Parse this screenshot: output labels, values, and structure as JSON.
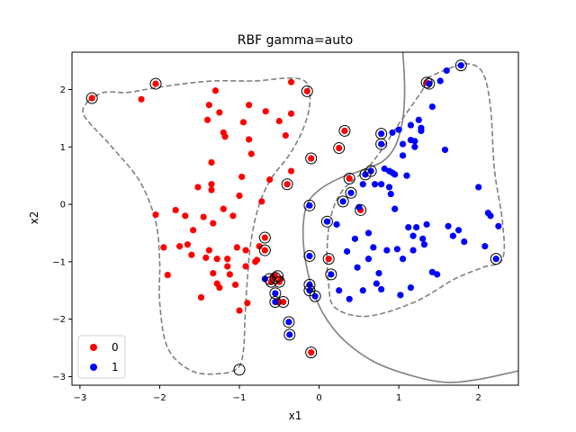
{
  "chart_data": {
    "type": "scatter",
    "title": "RBF gamma=auto",
    "xlabel": "x1",
    "ylabel": "x2",
    "xlim": [
      -3.1,
      2.5
    ],
    "ylim": [
      -3.15,
      2.65
    ],
    "xticks": [
      -3,
      -2,
      -1,
      0,
      1,
      2
    ],
    "yticks": [
      -3,
      -2,
      -1,
      0,
      1,
      2
    ],
    "xtick_labels": [
      "−3",
      "−2",
      "−1",
      "0",
      "1",
      "2"
    ],
    "ytick_labels": [
      "−3",
      "−2",
      "−1",
      "0",
      "1",
      "2"
    ],
    "grid": false,
    "legend_placement": "lower-left",
    "colors": {
      "class_0": "#ff0000",
      "class_1": "#0000ff",
      "boundary": "#808080",
      "support_vector_ring": "#000000"
    },
    "series": [
      {
        "name": "0",
        "color": "#ff0000",
        "points": [
          [
            -2.85,
            1.85
          ],
          [
            -2.23,
            1.83
          ],
          [
            -2.05,
            2.1
          ],
          [
            -2.05,
            -0.18
          ],
          [
            -1.95,
            -0.75
          ],
          [
            -1.9,
            -1.23
          ],
          [
            -1.8,
            -0.1
          ],
          [
            -1.75,
            -0.73
          ],
          [
            -1.68,
            -0.2
          ],
          [
            -1.65,
            -0.7
          ],
          [
            -1.6,
            -0.88
          ],
          [
            -1.58,
            -0.45
          ],
          [
            -1.52,
            0.3
          ],
          [
            -1.48,
            -1.62
          ],
          [
            -1.45,
            -0.22
          ],
          [
            -1.42,
            -0.93
          ],
          [
            -1.4,
            1.47
          ],
          [
            -1.38,
            1.73
          ],
          [
            -1.38,
            -0.8
          ],
          [
            -1.35,
            0.35
          ],
          [
            -1.35,
            0.25
          ],
          [
            -1.35,
            0.73
          ],
          [
            -1.33,
            -1.2
          ],
          [
            -1.33,
            -0.33
          ],
          [
            -1.3,
            1.98
          ],
          [
            -1.28,
            -0.95
          ],
          [
            -1.28,
            -1.38
          ],
          [
            -1.25,
            1.6
          ],
          [
            -1.25,
            -1.45
          ],
          [
            -1.2,
            -0.08
          ],
          [
            -1.2,
            1.25
          ],
          [
            -1.18,
            1.18
          ],
          [
            -1.15,
            -1.08
          ],
          [
            -1.15,
            -0.95
          ],
          [
            -1.12,
            -1.22
          ],
          [
            -1.08,
            -0.2
          ],
          [
            -1.05,
            -1.4
          ],
          [
            -1.03,
            -0.75
          ],
          [
            -1.0,
            0.15
          ],
          [
            -1.0,
            -1.85
          ],
          [
            -0.97,
            0.48
          ],
          [
            -0.95,
            1.43
          ],
          [
            -0.92,
            -0.8
          ],
          [
            -0.92,
            -1.08
          ],
          [
            -0.9,
            -1.72
          ],
          [
            -0.88,
            1.73
          ],
          [
            -0.88,
            1.13
          ],
          [
            -0.85,
            0.88
          ],
          [
            -0.8,
            -1.0
          ],
          [
            -0.78,
            -0.97
          ],
          [
            -0.75,
            -0.73
          ],
          [
            -0.72,
            0.05
          ],
          [
            -0.68,
            -0.58
          ],
          [
            -0.68,
            -0.8
          ],
          [
            -0.67,
            1.62
          ],
          [
            -0.62,
            0.43
          ],
          [
            -0.6,
            -1.35
          ],
          [
            -0.58,
            -1.28
          ],
          [
            -0.55,
            -1.25
          ],
          [
            -0.52,
            -1.7
          ],
          [
            -0.5,
            -1.35
          ],
          [
            -0.5,
            1.45
          ],
          [
            -0.48,
            -1.3
          ],
          [
            -0.45,
            -1.7
          ],
          [
            -0.42,
            1.2
          ],
          [
            -0.4,
            0.35
          ],
          [
            -0.35,
            0.58
          ],
          [
            -0.35,
            1.58
          ],
          [
            -0.35,
            2.13
          ],
          [
            -0.15,
            1.97
          ],
          [
            -0.1,
            0.8
          ],
          [
            -0.1,
            -2.58
          ],
          [
            0.12,
            -0.95
          ],
          [
            0.25,
            0.98
          ],
          [
            0.32,
            1.28
          ],
          [
            0.38,
            0.45
          ],
          [
            0.52,
            -0.1
          ],
          [
            1.35,
            2.12
          ]
        ]
      },
      {
        "name": "1",
        "color": "#0000ff",
        "points": [
          [
            -0.68,
            -1.3
          ],
          [
            -0.55,
            -1.55
          ],
          [
            -0.55,
            -1.7
          ],
          [
            -0.38,
            -2.05
          ],
          [
            -0.37,
            -2.27
          ],
          [
            -0.12,
            -0.02
          ],
          [
            -0.12,
            -0.9
          ],
          [
            -0.12,
            -1.4
          ],
          [
            -0.12,
            -1.5
          ],
          [
            -0.05,
            -1.6
          ],
          [
            0.1,
            -0.3
          ],
          [
            0.15,
            -1.22
          ],
          [
            0.22,
            -0.35
          ],
          [
            0.25,
            -1.5
          ],
          [
            0.3,
            0.05
          ],
          [
            0.35,
            -0.82
          ],
          [
            0.38,
            -1.65
          ],
          [
            0.4,
            0.2
          ],
          [
            0.45,
            -0.6
          ],
          [
            0.48,
            -1.1
          ],
          [
            0.5,
            -0.05
          ],
          [
            0.55,
            0.35
          ],
          [
            0.55,
            -1.5
          ],
          [
            0.58,
            0.52
          ],
          [
            0.62,
            -0.5
          ],
          [
            0.62,
            -0.95
          ],
          [
            0.65,
            0.58
          ],
          [
            0.68,
            -0.75
          ],
          [
            0.7,
            0.35
          ],
          [
            0.72,
            -1.38
          ],
          [
            0.75,
            -1.2
          ],
          [
            0.78,
            1.23
          ],
          [
            0.78,
            1.05
          ],
          [
            0.78,
            0.35
          ],
          [
            0.78,
            -1.48
          ],
          [
            0.82,
            0.62
          ],
          [
            0.85,
            -0.8
          ],
          [
            0.88,
            0.58
          ],
          [
            0.88,
            0.3
          ],
          [
            0.9,
            0.18
          ],
          [
            0.92,
            0.55
          ],
          [
            0.92,
            1.25
          ],
          [
            0.95,
            0.52
          ],
          [
            0.95,
            -0.08
          ],
          [
            0.98,
            -0.78
          ],
          [
            1.0,
            1.3
          ],
          [
            1.02,
            -1.58
          ],
          [
            1.05,
            1.05
          ],
          [
            1.05,
            0.85
          ],
          [
            1.05,
            -0.95
          ],
          [
            1.1,
            0.5
          ],
          [
            1.12,
            -0.4
          ],
          [
            1.15,
            1.38
          ],
          [
            1.15,
            1.12
          ],
          [
            1.15,
            -1.45
          ],
          [
            1.18,
            -0.55
          ],
          [
            1.18,
            -0.8
          ],
          [
            1.2,
            1.0
          ],
          [
            1.2,
            1.1
          ],
          [
            1.22,
            -0.4
          ],
          [
            1.25,
            1.47
          ],
          [
            1.28,
            1.33
          ],
          [
            1.28,
            1.28
          ],
          [
            1.3,
            -0.6
          ],
          [
            1.32,
            -0.7
          ],
          [
            1.35,
            -0.35
          ],
          [
            1.38,
            2.1
          ],
          [
            1.42,
            1.7
          ],
          [
            1.42,
            -1.18
          ],
          [
            1.48,
            -1.22
          ],
          [
            1.52,
            2.15
          ],
          [
            1.58,
            0.95
          ],
          [
            1.6,
            2.33
          ],
          [
            1.62,
            -0.38
          ],
          [
            1.68,
            -0.55
          ],
          [
            1.75,
            -0.45
          ],
          [
            1.78,
            2.42
          ],
          [
            1.82,
            -0.65
          ],
          [
            2.0,
            0.3
          ],
          [
            2.08,
            -0.73
          ],
          [
            2.12,
            -0.15
          ],
          [
            2.15,
            -0.2
          ],
          [
            2.22,
            -0.95
          ],
          [
            2.25,
            -0.38
          ]
        ]
      }
    ],
    "support_vectors": [
      [
        -2.85,
        1.85
      ],
      [
        -2.05,
        2.1
      ],
      [
        -1.0,
        -2.88
      ],
      [
        -0.68,
        -0.58
      ],
      [
        -0.68,
        -0.8
      ],
      [
        -0.6,
        -1.35
      ],
      [
        -0.62,
        -1.3
      ],
      [
        -0.55,
        -1.28
      ],
      [
        -0.52,
        -1.25
      ],
      [
        -0.55,
        -1.55
      ],
      [
        -0.55,
        -1.7
      ],
      [
        -0.5,
        -1.35
      ],
      [
        -0.45,
        -1.7
      ],
      [
        -0.4,
        0.35
      ],
      [
        -0.38,
        -2.05
      ],
      [
        -0.37,
        -2.27
      ],
      [
        -0.15,
        1.97
      ],
      [
        -0.12,
        -0.02
      ],
      [
        -0.1,
        0.8
      ],
      [
        -0.12,
        -0.9
      ],
      [
        -0.12,
        -1.4
      ],
      [
        -0.12,
        -1.5
      ],
      [
        -0.05,
        -1.6
      ],
      [
        -0.1,
        -2.58
      ],
      [
        0.1,
        -0.3
      ],
      [
        0.12,
        -0.95
      ],
      [
        0.15,
        -1.22
      ],
      [
        0.25,
        0.98
      ],
      [
        0.3,
        0.05
      ],
      [
        0.32,
        1.28
      ],
      [
        0.38,
        0.45
      ],
      [
        0.4,
        0.2
      ],
      [
        0.52,
        -0.1
      ],
      [
        0.58,
        0.52
      ],
      [
        0.65,
        0.58
      ],
      [
        0.78,
        1.23
      ],
      [
        0.78,
        1.05
      ],
      [
        1.35,
        2.12
      ],
      [
        1.38,
        2.1
      ],
      [
        1.78,
        2.42
      ],
      [
        2.22,
        -0.95
      ]
    ],
    "decision_boundary": [
      [
        1.05,
        2.65
      ],
      [
        1.07,
        2.2
      ],
      [
        1.07,
        1.8
      ],
      [
        1.04,
        1.4
      ],
      [
        0.95,
        1.0
      ],
      [
        0.8,
        0.75
      ],
      [
        0.55,
        0.6
      ],
      [
        0.25,
        0.45
      ],
      [
        0.0,
        0.25
      ],
      [
        -0.15,
        0.0
      ],
      [
        -0.2,
        -0.4
      ],
      [
        -0.18,
        -0.9
      ],
      [
        -0.1,
        -1.4
      ],
      [
        0.05,
        -1.9
      ],
      [
        0.3,
        -2.35
      ],
      [
        0.7,
        -2.75
      ],
      [
        1.2,
        -3.0
      ],
      [
        1.6,
        -3.1
      ],
      [
        2.0,
        -3.05
      ],
      [
        2.5,
        -2.9
      ]
    ],
    "margin_class_0": [
      [
        -2.9,
        1.8
      ],
      [
        -2.7,
        1.95
      ],
      [
        -2.4,
        1.95
      ],
      [
        -2.1,
        2.02
      ],
      [
        -1.7,
        2.1
      ],
      [
        -1.3,
        2.15
      ],
      [
        -0.8,
        2.15
      ],
      [
        -0.35,
        2.2
      ],
      [
        -0.15,
        2.1
      ],
      [
        -0.12,
        1.7
      ],
      [
        -0.22,
        1.25
      ],
      [
        -0.38,
        0.85
      ],
      [
        -0.6,
        0.45
      ],
      [
        -0.75,
        0.0
      ],
      [
        -0.85,
        -0.6
      ],
      [
        -0.9,
        -1.3
      ],
      [
        -0.93,
        -2.0
      ],
      [
        -0.95,
        -2.55
      ],
      [
        -1.02,
        -2.85
      ],
      [
        -1.25,
        -2.95
      ],
      [
        -1.6,
        -2.9
      ],
      [
        -1.9,
        -2.5
      ],
      [
        -2.0,
        -1.7
      ],
      [
        -2.0,
        -1.0
      ],
      [
        -2.05,
        -0.3
      ],
      [
        -2.25,
        0.4
      ],
      [
        -2.6,
        1.0
      ],
      [
        -2.95,
        1.55
      ],
      [
        -2.9,
        1.8
      ]
    ],
    "margin_class_1": [
      [
        1.35,
        2.2
      ],
      [
        1.6,
        2.35
      ],
      [
        1.85,
        2.45
      ],
      [
        2.05,
        2.3
      ],
      [
        2.15,
        1.7
      ],
      [
        2.2,
        0.6
      ],
      [
        2.3,
        -0.3
      ],
      [
        2.3,
        -0.95
      ],
      [
        2.05,
        -1.1
      ],
      [
        1.7,
        -1.3
      ],
      [
        1.2,
        -1.7
      ],
      [
        0.6,
        -1.95
      ],
      [
        0.2,
        -1.8
      ],
      [
        0.12,
        -1.4
      ],
      [
        0.1,
        -0.8
      ],
      [
        0.15,
        -0.2
      ],
      [
        0.3,
        0.25
      ],
      [
        0.65,
        0.7
      ],
      [
        1.0,
        1.4
      ],
      [
        1.3,
        2.0
      ],
      [
        1.35,
        2.2
      ]
    ],
    "legend": [
      {
        "label": "0",
        "color": "#ff0000"
      },
      {
        "label": "1",
        "color": "#0000ff"
      }
    ]
  }
}
